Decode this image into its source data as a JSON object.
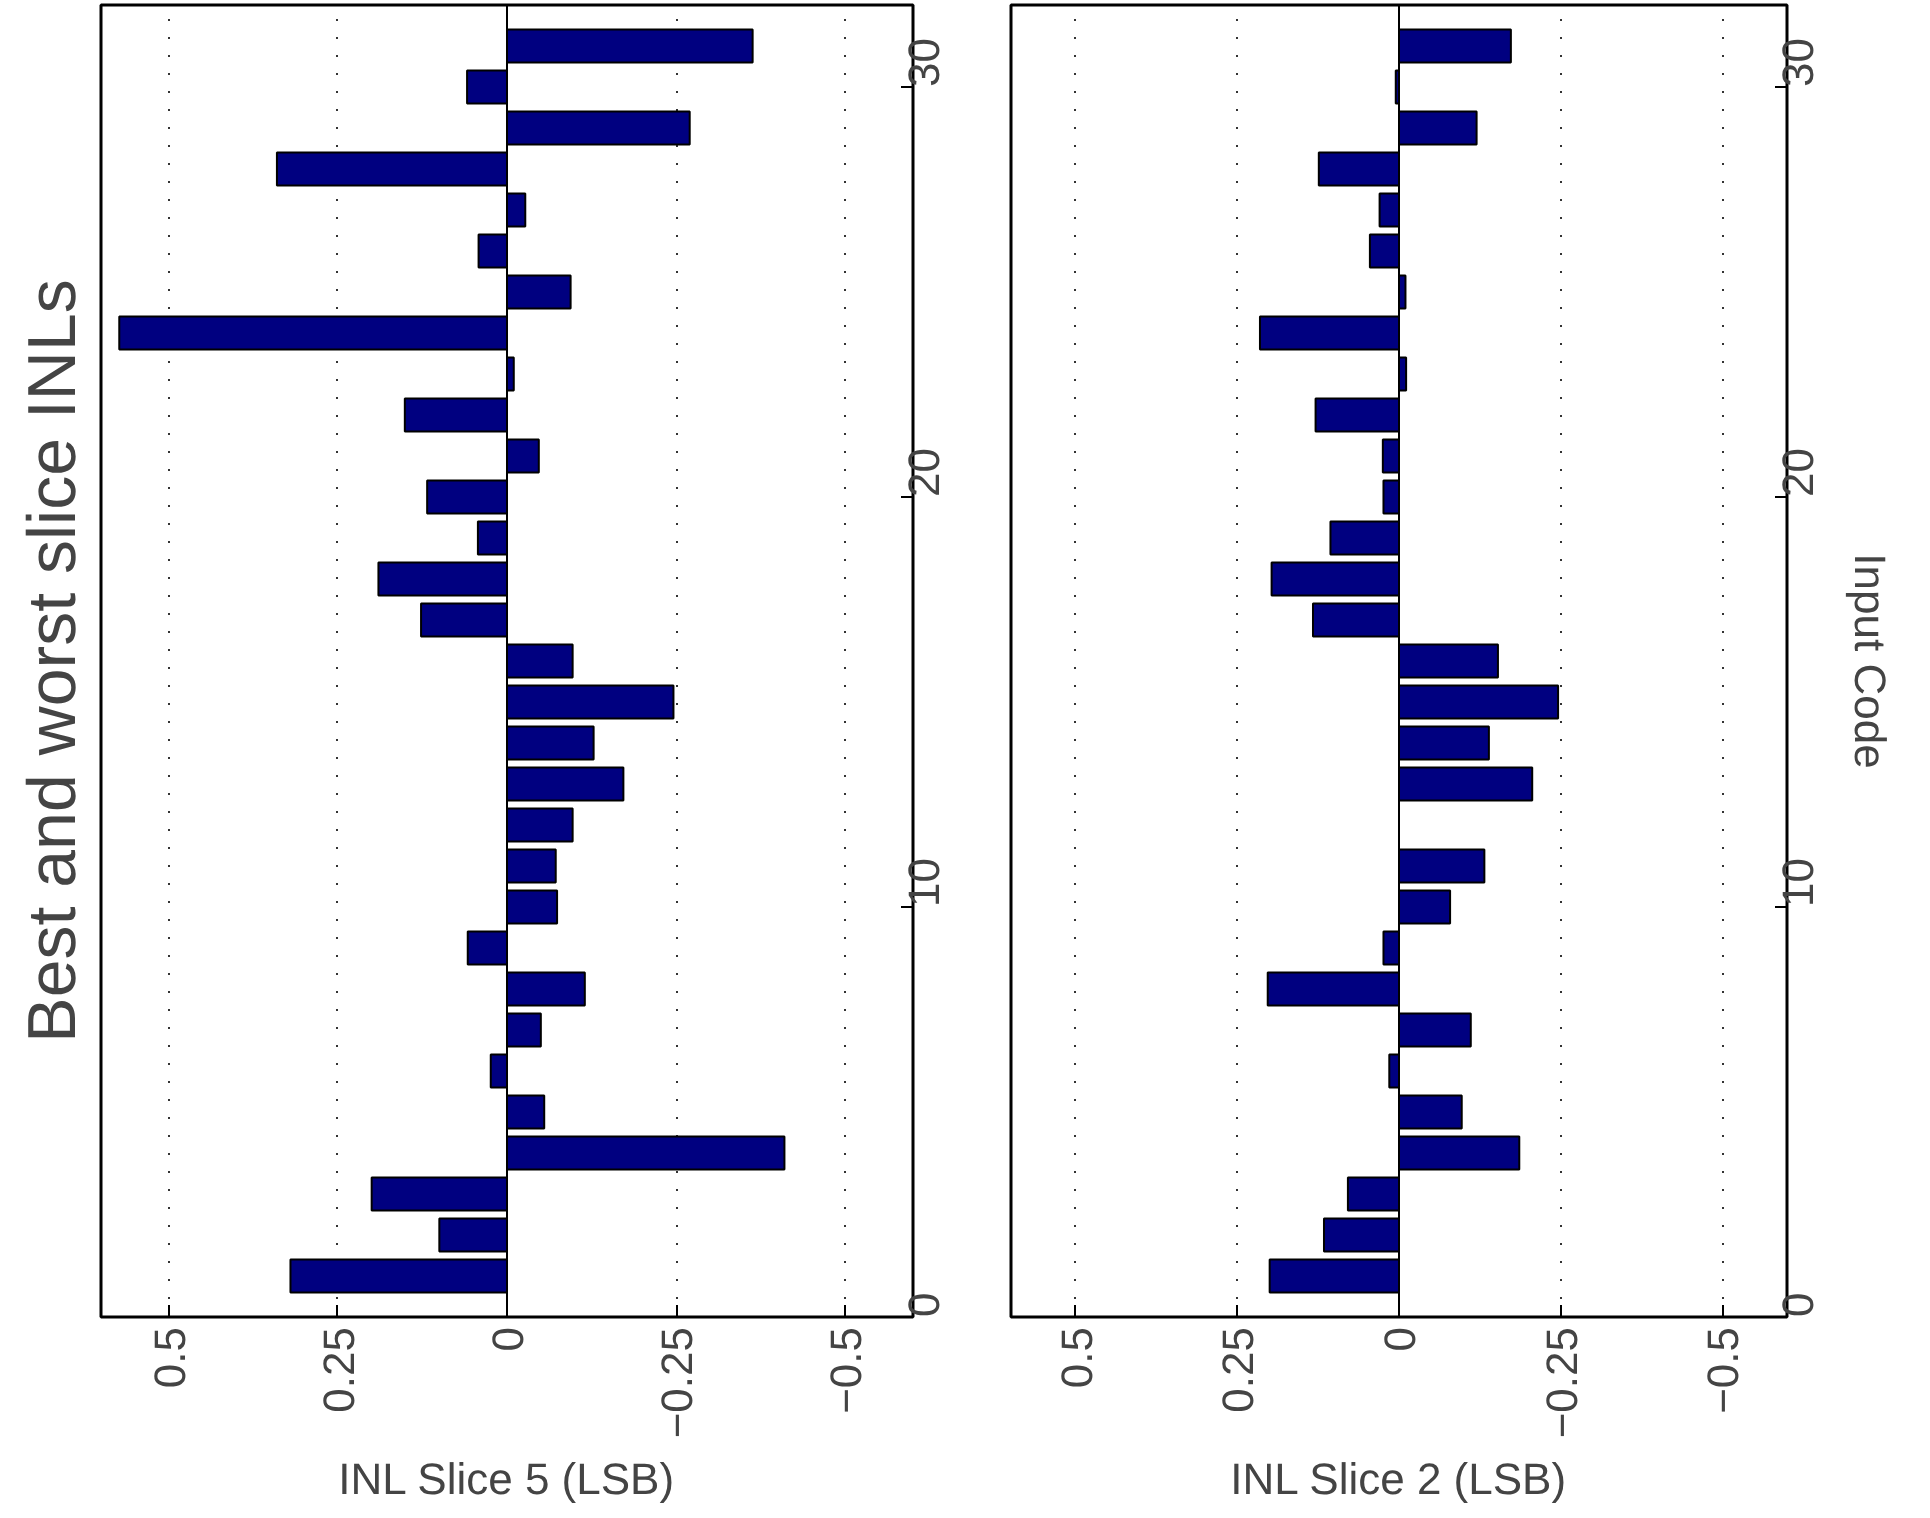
{
  "chart_data": [
    {
      "type": "bar",
      "orientation": "horizontal",
      "title": "Best and worst slice INLs",
      "xlabel": "INL Slice 5 (LSB)",
      "color": "#000080",
      "x": [
        1,
        2,
        3,
        4,
        5,
        6,
        7,
        8,
        9,
        10,
        11,
        12,
        13,
        14,
        15,
        16,
        17,
        18,
        19,
        20,
        21,
        22,
        23,
        24,
        25,
        26,
        27,
        28,
        29,
        30,
        31
      ],
      "values": [
        0.32,
        0.1,
        0.2,
        -0.41,
        -0.055,
        0.024,
        -0.05,
        -0.115,
        0.058,
        -0.074,
        -0.072,
        -0.097,
        -0.172,
        -0.128,
        -0.246,
        -0.097,
        0.127,
        0.19,
        0.043,
        0.118,
        -0.047,
        0.151,
        -0.01,
        0.573,
        -0.094,
        0.042,
        -0.027,
        0.34,
        -0.27,
        0.059,
        -0.363
      ],
      "xlim": [
        0.6,
        -0.6
      ],
      "xticks": [
        0.5,
        0.25,
        0,
        -0.25,
        -0.5
      ],
      "ylim": [
        0,
        32
      ],
      "yticks": [
        0,
        10,
        20,
        30
      ],
      "grid": "x"
    },
    {
      "type": "bar",
      "orientation": "horizontal",
      "xlabel": "INL Slice 2 (LSB)",
      "ylabel": "Input Code",
      "color": "#000080",
      "x": [
        1,
        2,
        3,
        4,
        5,
        6,
        7,
        8,
        9,
        10,
        11,
        12,
        13,
        14,
        15,
        16,
        17,
        18,
        19,
        20,
        21,
        22,
        23,
        24,
        25,
        26,
        27,
        28,
        29,
        30,
        31
      ],
      "values": [
        0.2,
        0.116,
        0.079,
        -0.186,
        -0.097,
        0.015,
        -0.111,
        0.203,
        0.024,
        -0.079,
        -0.132,
        null,
        -0.206,
        -0.139,
        -0.246,
        -0.153,
        0.133,
        0.197,
        0.106,
        0.024,
        0.025,
        0.129,
        -0.011,
        0.215,
        -0.01,
        0.045,
        0.03,
        0.124,
        -0.12,
        0.005,
        -0.173
      ],
      "xlim": [
        0.6,
        -0.6
      ],
      "xticks": [
        0.5,
        0.25,
        0,
        -0.25,
        -0.5
      ],
      "ylim": [
        0,
        32
      ],
      "yticks": [
        0,
        10,
        20,
        30
      ],
      "grid": "x"
    }
  ]
}
